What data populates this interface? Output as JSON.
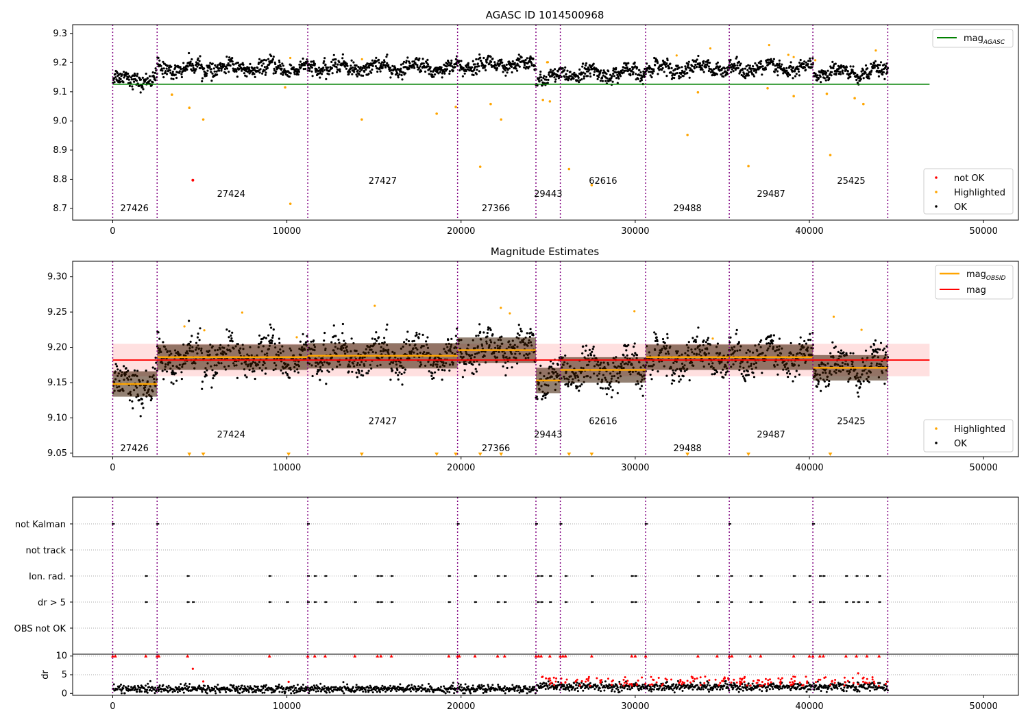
{
  "chart_data": [
    {
      "type": "scatter",
      "title": "AGASC ID 1014500968",
      "xlim": [
        -2300,
        52000
      ],
      "ylim": [
        8.66,
        9.33
      ],
      "xticks": [
        0,
        10000,
        20000,
        30000,
        40000,
        50000
      ],
      "xtick_labels": [
        "0",
        "10000",
        "20000",
        "30000",
        "40000",
        "50000"
      ],
      "yticks": [
        8.7,
        8.8,
        8.9,
        9.0,
        9.1,
        9.2,
        9.3
      ],
      "ytick_labels": [
        "8.7",
        "8.8",
        "8.9",
        "9.0",
        "9.1",
        "9.2",
        "9.3"
      ],
      "obs_boundaries": [
        0,
        2550,
        11200,
        19800,
        24300,
        25700,
        30600,
        35400,
        40200,
        44500
      ],
      "obsids": [
        {
          "label": "27426",
          "x": 1250,
          "y": 8.69
        },
        {
          "label": "27424",
          "x": 6800,
          "y": 8.74
        },
        {
          "label": "27427",
          "x": 15500,
          "y": 8.785
        },
        {
          "label": "27366",
          "x": 22000,
          "y": 8.69
        },
        {
          "label": "29443",
          "x": 25000,
          "y": 8.74
        },
        {
          "label": "62616",
          "x": 28150,
          "y": 8.785
        },
        {
          "label": "29488",
          "x": 33000,
          "y": 8.69
        },
        {
          "label": "29487",
          "x": 37800,
          "y": 8.74
        },
        {
          "label": "25425",
          "x": 42400,
          "y": 8.785
        }
      ],
      "segments": [
        {
          "x0": 0,
          "x1": 2550,
          "mean": 9.148
        },
        {
          "x0": 2550,
          "x1": 11200,
          "mean": 9.186
        },
        {
          "x0": 11200,
          "x1": 19800,
          "mean": 9.188
        },
        {
          "x0": 19800,
          "x1": 24300,
          "mean": 9.196
        },
        {
          "x0": 24300,
          "x1": 25700,
          "mean": 9.153
        },
        {
          "x0": 25700,
          "x1": 30600,
          "mean": 9.168
        },
        {
          "x0": 30600,
          "x1": 35400,
          "mean": 9.186
        },
        {
          "x0": 35400,
          "x1": 40200,
          "mean": 9.186
        },
        {
          "x0": 40200,
          "x1": 44500,
          "mean": 9.171
        }
      ],
      "mag_agasc": 9.126,
      "highlighted_outliers": [
        {
          "x": 3400,
          "y": 9.09
        },
        {
          "x": 4400,
          "y": 9.045
        },
        {
          "x": 5200,
          "y": 9.005
        },
        {
          "x": 9900,
          "y": 9.115
        },
        {
          "x": 14300,
          "y": 9.005
        },
        {
          "x": 18600,
          "y": 9.025
        },
        {
          "x": 19700,
          "y": 9.048
        },
        {
          "x": 21100,
          "y": 8.843
        },
        {
          "x": 21700,
          "y": 9.058
        },
        {
          "x": 22300,
          "y": 9.005
        },
        {
          "x": 24700,
          "y": 9.072
        },
        {
          "x": 25100,
          "y": 9.067
        },
        {
          "x": 26200,
          "y": 8.835
        },
        {
          "x": 27500,
          "y": 8.78
        },
        {
          "x": 33000,
          "y": 8.952
        },
        {
          "x": 33600,
          "y": 9.098
        },
        {
          "x": 36500,
          "y": 8.845
        },
        {
          "x": 37600,
          "y": 9.112
        },
        {
          "x": 39100,
          "y": 9.085
        },
        {
          "x": 41000,
          "y": 9.093
        },
        {
          "x": 41200,
          "y": 8.883
        },
        {
          "x": 42600,
          "y": 9.078
        },
        {
          "x": 43100,
          "y": 9.058
        },
        {
          "x": 10200,
          "y": 8.716
        }
      ],
      "not_ok_points": [
        {
          "x": 4600,
          "y": 8.797
        }
      ],
      "legend_upper": [
        {
          "name": "mag_AGASC",
          "label": "mag",
          "subscript": "AGASC",
          "color": "#008000"
        }
      ],
      "legend_lower": [
        {
          "name": "not OK",
          "color": "#ff0000"
        },
        {
          "name": "Highlighted",
          "color": "#ffa500"
        },
        {
          "name": "OK",
          "color": "#000000"
        }
      ]
    },
    {
      "type": "scatter",
      "title": "Magnitude Estimates",
      "xlim": [
        -2300,
        52000
      ],
      "ylim": [
        9.045,
        9.322
      ],
      "xticks": [
        0,
        10000,
        20000,
        30000,
        40000,
        50000
      ],
      "xtick_labels": [
        "0",
        "10000",
        "20000",
        "30000",
        "40000",
        "50000"
      ],
      "yticks": [
        9.05,
        9.1,
        9.15,
        9.2,
        9.25,
        9.3
      ],
      "ytick_labels": [
        "9.05",
        "9.10",
        "9.15",
        "9.20",
        "9.25",
        "9.30"
      ],
      "obsids": [
        {
          "label": "27426",
          "x": 1250,
          "y": 9.053
        },
        {
          "label": "27424",
          "x": 6800,
          "y": 9.072
        },
        {
          "label": "27427",
          "x": 15500,
          "y": 9.091
        },
        {
          "label": "27366",
          "x": 22000,
          "y": 9.053
        },
        {
          "label": "29443",
          "x": 25000,
          "y": 9.072
        },
        {
          "label": "62616",
          "x": 28150,
          "y": 9.091
        },
        {
          "label": "29488",
          "x": 33000,
          "y": 9.053
        },
        {
          "label": "29487",
          "x": 37800,
          "y": 9.072
        },
        {
          "label": "25425",
          "x": 42400,
          "y": 9.091
        }
      ],
      "mag_overall": 9.182,
      "mag_band": [
        9.159,
        9.205
      ],
      "below_range_markers": [
        4400,
        5200,
        10100,
        14300,
        18600,
        19700,
        21100,
        22300,
        26200,
        27500,
        33000,
        36500,
        41200
      ],
      "legend_upper": [
        {
          "name": "mag_OBSID",
          "label": "mag",
          "subscript": "OBSID",
          "color": "#ffa500"
        },
        {
          "name": "mag",
          "label": "mag",
          "color": "#ff0000"
        }
      ],
      "legend_lower": [
        {
          "name": "Highlighted",
          "color": "#ffa500"
        },
        {
          "name": "OK",
          "color": "#000000"
        }
      ]
    },
    {
      "type": "scatter",
      "title": "",
      "category_labels": [
        "not Kalman",
        "not track",
        "Ion. rad.",
        "dr > 5",
        "OBS not OK"
      ],
      "flags": {
        "not Kalman": [
          0,
          2550,
          11200,
          19800,
          24300,
          25700,
          30600,
          35400,
          40200
        ],
        "not track": [],
        "Ion. rad.": [
          1900,
          4300,
          9000,
          11200,
          11600,
          12200,
          13900,
          15200,
          15400,
          16000,
          19300,
          20800,
          22100,
          22500,
          24400,
          24600,
          25100,
          26000,
          27500,
          29800,
          30000,
          33600,
          34700,
          35500,
          36600,
          37200,
          39100,
          40000,
          40600,
          40800,
          42100,
          42700,
          43300,
          44000
        ],
        "dr > 5": [
          1900,
          4300,
          4600,
          9000,
          10000,
          11200,
          11600,
          12200,
          13900,
          15200,
          15400,
          16000,
          19300,
          20800,
          22100,
          22500,
          24400,
          24600,
          25100,
          26000,
          27500,
          29800,
          30000,
          33600,
          34700,
          35500,
          36600,
          37200,
          39100,
          40000,
          40600,
          40800,
          42100,
          42500,
          42800,
          43300,
          44000
        ],
        "OBS not OK": []
      }
    },
    {
      "type": "scatter",
      "title": "",
      "ylabel": "dr",
      "xlim": [
        -2300,
        52000
      ],
      "ylim": [
        -0.5,
        10.5
      ],
      "yticks": [
        0,
        5,
        10
      ],
      "ytick_labels": [
        "0",
        "5",
        "10"
      ],
      "xticks": [
        0,
        10000,
        20000,
        30000,
        40000,
        50000
      ],
      "xtick_labels": [
        "0",
        "10000",
        "20000",
        "30000",
        "40000",
        "50000"
      ],
      "capped_markers": [
        0,
        150,
        1900,
        2550,
        2650,
        4300,
        9000,
        11200,
        11600,
        12200,
        13900,
        15200,
        15400,
        16000,
        19300,
        19800,
        19900,
        20800,
        22100,
        22500,
        24300,
        24450,
        24600,
        25100,
        25700,
        25850,
        26000,
        27500,
        29800,
        30000,
        30600,
        33600,
        34700,
        35400,
        35550,
        36600,
        37200,
        39100,
        40000,
        40200,
        40600,
        40800,
        42100,
        42700,
        43300,
        44000
      ],
      "outliers": [
        {
          "x": 4600,
          "y": 6.6
        },
        {
          "x": 5200,
          "y": 3.2
        },
        {
          "x": 10100,
          "y": 3.1
        },
        {
          "x": 42800,
          "y": 5.4
        }
      ]
    }
  ]
}
